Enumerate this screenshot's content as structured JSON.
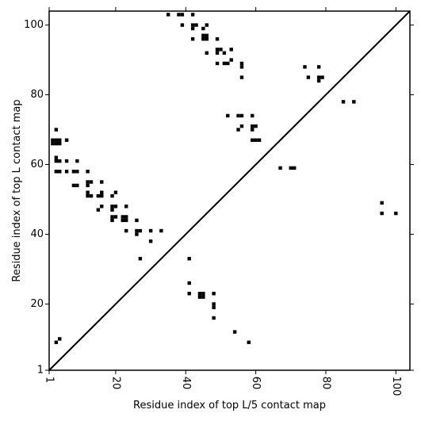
{
  "chart_data": {
    "type": "heatmap",
    "title": "",
    "xlabel": "Residue index of top L/5 contact map",
    "ylabel": "Residue index of top L contact map",
    "xlim": [
      1,
      104
    ],
    "ylim": [
      1,
      104
    ],
    "x_ticks": [
      1,
      20,
      40,
      60,
      80,
      100
    ],
    "y_ticks": [
      1,
      20,
      40,
      60,
      80,
      100
    ],
    "x_tick_labels": [
      "1",
      "20",
      "40",
      "60",
      "80",
      "100"
    ],
    "y_tick_labels": [
      "1",
      "20",
      "40",
      "60",
      "80",
      "100"
    ],
    "x_tick_rotation": -90,
    "grid": false,
    "legend": "none",
    "diagonal": true,
    "colors": {
      "mark": "#000000",
      "background": "#ffffff",
      "axis": "#000000"
    },
    "upper_triangle": [
      [
        35,
        103
      ],
      [
        38,
        103
      ],
      [
        39,
        103
      ],
      [
        42,
        103
      ],
      [
        39,
        100
      ],
      [
        42,
        100
      ],
      [
        43,
        100
      ],
      [
        46,
        100
      ],
      [
        42,
        99
      ],
      [
        45,
        99
      ],
      [
        45,
        97
      ],
      [
        46,
        97
      ],
      [
        42,
        96
      ],
      [
        45,
        96
      ],
      [
        46,
        96
      ],
      [
        49,
        96
      ],
      [
        49,
        93
      ],
      [
        50,
        93
      ],
      [
        53,
        93
      ],
      [
        46,
        92
      ],
      [
        49,
        92
      ],
      [
        51,
        92
      ],
      [
        53,
        90
      ],
      [
        49,
        89
      ],
      [
        51,
        89
      ],
      [
        52,
        89
      ],
      [
        56,
        89
      ],
      [
        56,
        88
      ],
      [
        74,
        88
      ],
      [
        78,
        88
      ],
      [
        56,
        85
      ],
      [
        75,
        85
      ],
      [
        78,
        85
      ],
      [
        79,
        85
      ],
      [
        78,
        84
      ],
      [
        85,
        78
      ],
      [
        88,
        78
      ],
      [
        52,
        74
      ],
      [
        55,
        74
      ],
      [
        56,
        74
      ],
      [
        59,
        74
      ],
      [
        56,
        71
      ],
      [
        59,
        71
      ],
      [
        60,
        71
      ],
      [
        55,
        70
      ],
      [
        59,
        70
      ],
      [
        59,
        67
      ],
      [
        60,
        67
      ],
      [
        61,
        67
      ],
      [
        67,
        59
      ],
      [
        70,
        59
      ],
      [
        71,
        59
      ],
      [
        96,
        49
      ],
      [
        96,
        46
      ],
      [
        100,
        46
      ]
    ],
    "lower_triangle": [
      [
        3,
        70
      ],
      [
        2,
        67
      ],
      [
        3,
        67
      ],
      [
        4,
        67
      ],
      [
        6,
        67
      ],
      [
        2,
        66
      ],
      [
        3,
        66
      ],
      [
        4,
        66
      ],
      [
        3,
        62
      ],
      [
        3,
        61
      ],
      [
        4,
        61
      ],
      [
        6,
        61
      ],
      [
        9,
        61
      ],
      [
        3,
        58
      ],
      [
        4,
        58
      ],
      [
        6,
        58
      ],
      [
        8,
        58
      ],
      [
        9,
        58
      ],
      [
        12,
        58
      ],
      [
        12,
        55
      ],
      [
        13,
        55
      ],
      [
        16,
        55
      ],
      [
        9,
        54
      ],
      [
        12,
        54
      ],
      [
        8,
        54
      ],
      [
        12,
        52
      ],
      [
        16,
        52
      ],
      [
        20,
        52
      ],
      [
        12,
        51
      ],
      [
        13,
        51
      ],
      [
        15,
        51
      ],
      [
        16,
        51
      ],
      [
        19,
        51
      ],
      [
        20,
        48
      ],
      [
        23,
        48
      ],
      [
        16,
        48
      ],
      [
        19,
        48
      ],
      [
        15,
        47
      ],
      [
        19,
        47
      ],
      [
        19,
        45
      ],
      [
        20,
        45
      ],
      [
        22,
        45
      ],
      [
        23,
        45
      ],
      [
        19,
        44
      ],
      [
        22,
        44
      ],
      [
        23,
        44
      ],
      [
        26,
        44
      ],
      [
        23,
        41
      ],
      [
        26,
        41
      ],
      [
        27,
        41
      ],
      [
        30,
        41
      ],
      [
        33,
        41
      ],
      [
        26,
        40
      ],
      [
        30,
        38
      ],
      [
        27,
        33
      ],
      [
        41,
        33
      ],
      [
        41,
        26
      ],
      [
        41,
        23
      ],
      [
        44,
        23
      ],
      [
        45,
        23
      ],
      [
        48,
        23
      ],
      [
        44,
        22
      ],
      [
        45,
        22
      ],
      [
        48,
        20
      ],
      [
        48,
        19
      ],
      [
        48,
        16
      ],
      [
        54,
        12
      ],
      [
        58,
        9
      ],
      [
        4,
        10
      ],
      [
        3,
        9
      ]
    ]
  }
}
